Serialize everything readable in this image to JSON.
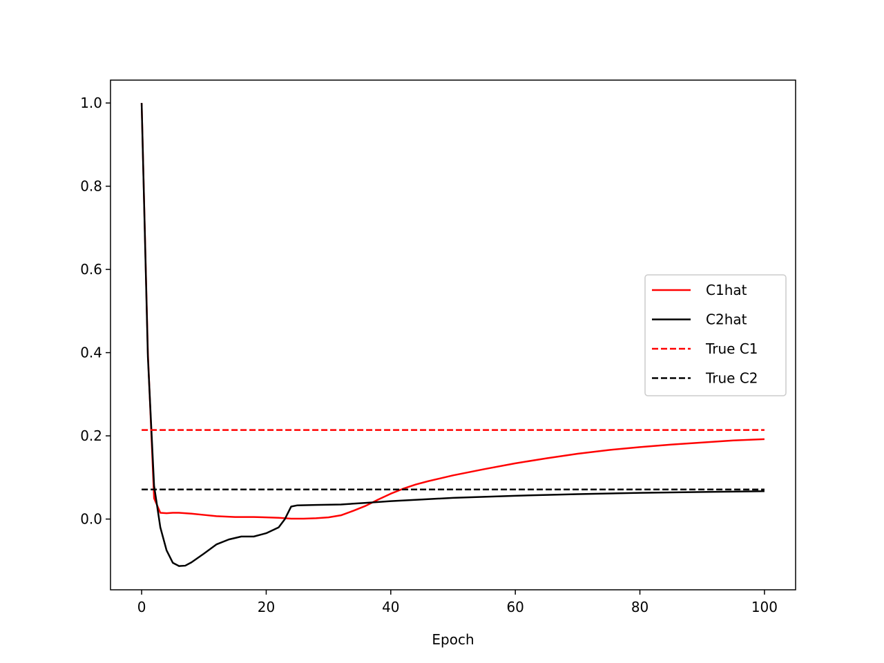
{
  "chart_data": {
    "type": "line",
    "title": "",
    "xlabel": "Epoch",
    "ylabel": "",
    "xlim": [
      -5,
      105
    ],
    "ylim": [
      -0.17,
      1.055
    ],
    "xticks": [
      0,
      20,
      40,
      60,
      80,
      100
    ],
    "xtick_labels": [
      "0",
      "20",
      "40",
      "60",
      "80",
      "100"
    ],
    "yticks": [
      0.0,
      0.2,
      0.4,
      0.6,
      0.8,
      1.0
    ],
    "ytick_labels": [
      "0.0",
      "0.2",
      "0.4",
      "0.6",
      "0.8",
      "1.0"
    ],
    "grid": false,
    "legend_position": "center-right",
    "series": [
      {
        "name": "C1hat",
        "color": "#ff0000",
        "dash": "solid",
        "x": [
          0,
          1,
          2,
          3,
          4,
          5,
          6,
          7,
          8,
          10,
          12,
          15,
          18,
          20,
          22,
          24,
          26,
          28,
          30,
          32,
          34,
          36,
          38,
          40,
          42,
          44,
          46,
          48,
          50,
          55,
          60,
          65,
          70,
          75,
          80,
          85,
          90,
          95,
          100
        ],
        "y": [
          1.0,
          0.4,
          0.05,
          0.015,
          0.014,
          0.015,
          0.015,
          0.014,
          0.013,
          0.01,
          0.007,
          0.005,
          0.005,
          0.004,
          0.003,
          0.001,
          0.001,
          0.002,
          0.004,
          0.009,
          0.02,
          0.032,
          0.047,
          0.061,
          0.073,
          0.083,
          0.091,
          0.098,
          0.105,
          0.12,
          0.134,
          0.146,
          0.157,
          0.166,
          0.173,
          0.179,
          0.184,
          0.189,
          0.192
        ]
      },
      {
        "name": "C2hat",
        "color": "#000000",
        "dash": "solid",
        "x": [
          0,
          1,
          2,
          3,
          4,
          5,
          6,
          7,
          8,
          10,
          12,
          14,
          16,
          18,
          20,
          22,
          23,
          24,
          25,
          28,
          32,
          36,
          40,
          45,
          50,
          60,
          70,
          80,
          90,
          100
        ],
        "y": [
          1.0,
          0.39,
          0.08,
          -0.02,
          -0.075,
          -0.105,
          -0.113,
          -0.112,
          -0.104,
          -0.083,
          -0.061,
          -0.049,
          -0.042,
          -0.042,
          -0.034,
          -0.02,
          0.0,
          0.03,
          0.033,
          0.034,
          0.035,
          0.039,
          0.043,
          0.047,
          0.051,
          0.056,
          0.06,
          0.063,
          0.065,
          0.067
        ]
      },
      {
        "name": "True C1",
        "color": "#ff0000",
        "dash": "dashed",
        "x": [
          0,
          100
        ],
        "y": [
          0.214,
          0.214
        ]
      },
      {
        "name": "True C2",
        "color": "#000000",
        "dash": "dashed",
        "x": [
          0,
          100
        ],
        "y": [
          0.071,
          0.071
        ]
      }
    ]
  }
}
